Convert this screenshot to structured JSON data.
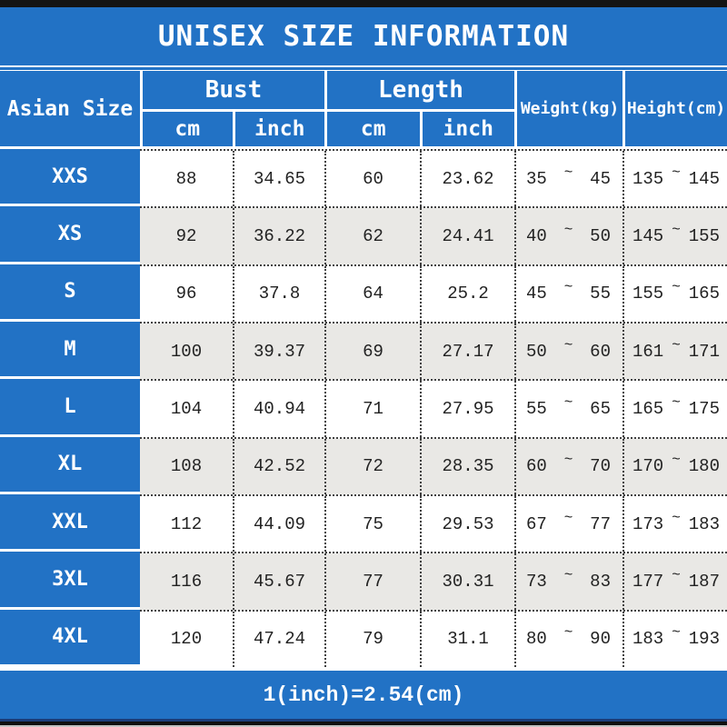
{
  "chart_data": {
    "type": "table",
    "title": "UNISEX SIZE INFORMATION",
    "header": {
      "asian_size": "Asian Size",
      "bust": {
        "label": "Bust",
        "sub": [
          "cm",
          "inch"
        ]
      },
      "length": {
        "label": "Length",
        "sub": [
          "cm",
          "inch"
        ]
      },
      "weight": "Weight(kg)",
      "height": "Height(cm)"
    },
    "range_separator": "~",
    "rows": [
      {
        "size": "XXS",
        "bust_cm": "88",
        "bust_inch": "34.65",
        "length_cm": "60",
        "length_inch": "23.62",
        "weight_min": "35",
        "weight_max": "45",
        "height_min": "135",
        "height_max": "145"
      },
      {
        "size": "XS",
        "bust_cm": "92",
        "bust_inch": "36.22",
        "length_cm": "62",
        "length_inch": "24.41",
        "weight_min": "40",
        "weight_max": "50",
        "height_min": "145",
        "height_max": "155"
      },
      {
        "size": "S",
        "bust_cm": "96",
        "bust_inch": "37.8",
        "length_cm": "64",
        "length_inch": "25.2",
        "weight_min": "45",
        "weight_max": "55",
        "height_min": "155",
        "height_max": "165"
      },
      {
        "size": "M",
        "bust_cm": "100",
        "bust_inch": "39.37",
        "length_cm": "69",
        "length_inch": "27.17",
        "weight_min": "50",
        "weight_max": "60",
        "height_min": "161",
        "height_max": "171"
      },
      {
        "size": "L",
        "bust_cm": "104",
        "bust_inch": "40.94",
        "length_cm": "71",
        "length_inch": "27.95",
        "weight_min": "55",
        "weight_max": "65",
        "height_min": "165",
        "height_max": "175"
      },
      {
        "size": "XL",
        "bust_cm": "108",
        "bust_inch": "42.52",
        "length_cm": "72",
        "length_inch": "28.35",
        "weight_min": "60",
        "weight_max": "70",
        "height_min": "170",
        "height_max": "180"
      },
      {
        "size": "XXL",
        "bust_cm": "112",
        "bust_inch": "44.09",
        "length_cm": "75",
        "length_inch": "29.53",
        "weight_min": "67",
        "weight_max": "77",
        "height_min": "173",
        "height_max": "183"
      },
      {
        "size": "3XL",
        "bust_cm": "116",
        "bust_inch": "45.67",
        "length_cm": "77",
        "length_inch": "30.31",
        "weight_min": "73",
        "weight_max": "83",
        "height_min": "177",
        "height_max": "187"
      },
      {
        "size": "4XL",
        "bust_cm": "120",
        "bust_inch": "47.24",
        "length_cm": "79",
        "length_inch": "31.1",
        "weight_min": "80",
        "weight_max": "90",
        "height_min": "183",
        "height_max": "193"
      }
    ],
    "footer_note": "1(inch)=2.54(cm)",
    "colors": {
      "accent_blue": "#2272c5",
      "alt_row_gray": "#e9e8e5",
      "data_text": "#222222",
      "header_text": "#ffffff"
    }
  }
}
